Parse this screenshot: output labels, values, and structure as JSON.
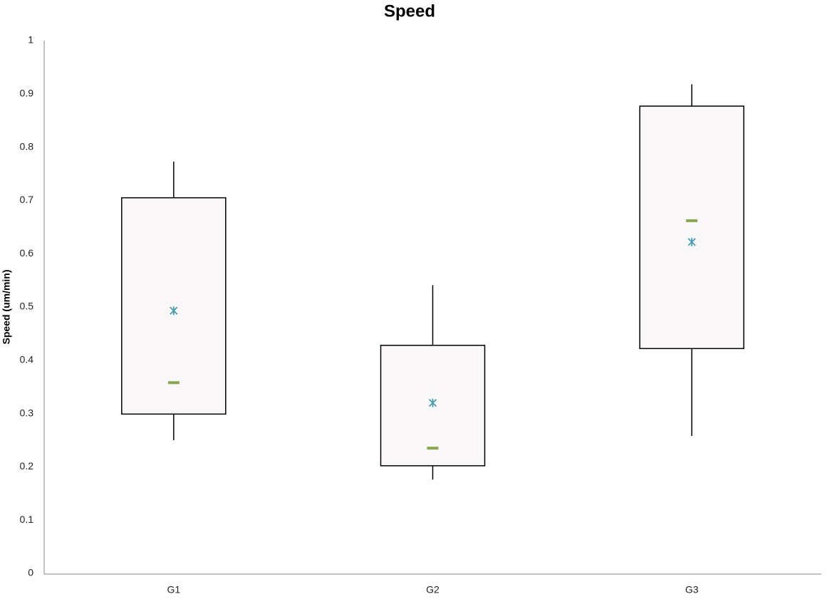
{
  "chart_data": {
    "type": "box",
    "title": "Speed",
    "y_label": "Speed (um/min)",
    "categories": [
      "G1",
      "G2",
      "G3"
    ],
    "boxes": [
      {
        "min": 0.25,
        "q1": 0.299,
        "median": 0.358,
        "q3": 0.705,
        "max": 0.773,
        "mean": 0.493
      },
      {
        "min": 0.176,
        "q1": 0.202,
        "median": 0.235,
        "q3": 0.428,
        "max": 0.541,
        "mean": 0.32
      },
      {
        "min": 0.258,
        "q1": 0.422,
        "median": 0.662,
        "q3": 0.877,
        "max": 0.918,
        "mean": 0.622
      }
    ],
    "box_color": "#f9f7f7",
    "median_color": "#8aa64e",
    "mean_color": "#4a9bad",
    "ylim": [
      0,
      1
    ],
    "yticks": [
      0,
      0.1,
      0.2,
      0.3,
      0.4,
      0.5,
      0.6,
      0.7,
      0.8,
      0.9,
      1
    ],
    "grid": false
  }
}
